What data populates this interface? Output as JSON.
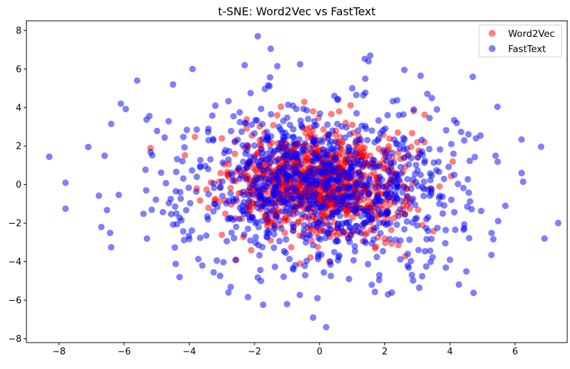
{
  "chart_data": {
    "type": "scatter",
    "title": "t-SNE: Word2Vec vs FastText",
    "xlabel": "",
    "ylabel": "",
    "xlim": [
      -9.0,
      7.6
    ],
    "ylim": [
      -8.2,
      8.5
    ],
    "xticks": [
      -8,
      -6,
      -4,
      -2,
      0,
      2,
      4,
      6
    ],
    "yticks": [
      -8,
      -6,
      -4,
      -2,
      0,
      2,
      4,
      6,
      8
    ],
    "grid": false,
    "legend_position": "top-right",
    "series": [
      {
        "name": "Word2Vec",
        "color": "#ff0000",
        "alpha": 0.5,
        "distribution": "gaussian",
        "count": 1000,
        "center": [
          0.0,
          0.0
        ],
        "std": [
          1.3,
          1.3
        ],
        "points": [
          [
            -0.2,
            3.8
          ],
          [
            0.6,
            3.8
          ],
          [
            -2.1,
            -3.4
          ],
          [
            1.7,
            -3.3
          ],
          [
            0.3,
            -4.0
          ],
          [
            -0.6,
            -4.1
          ],
          [
            -0.4,
            2.9
          ],
          [
            1.0,
            3.1
          ],
          [
            2.4,
            2.7
          ],
          [
            3.0,
            2.2
          ],
          [
            -3.0,
            2.4
          ],
          [
            -2.6,
            1.6
          ],
          [
            -1.3,
            3.6
          ],
          [
            2.0,
            -2.8
          ],
          [
            -1.5,
            -2.9
          ]
        ]
      },
      {
        "name": "FastText",
        "color": "#0000ff",
        "alpha": 0.5,
        "distribution": "gaussian",
        "count": 1000,
        "center": [
          0.0,
          0.0
        ],
        "std": [
          2.2,
          2.2
        ],
        "points": [
          [
            -8.3,
            1.45
          ],
          [
            -7.8,
            0.1
          ],
          [
            -7.8,
            -1.25
          ],
          [
            -7.1,
            1.95
          ],
          [
            -6.6,
            1.5
          ],
          [
            -6.4,
            3.15
          ],
          [
            -6.1,
            4.2
          ],
          [
            -6.7,
            -2.2
          ],
          [
            -6.4,
            -3.25
          ],
          [
            -5.6,
            5.4
          ],
          [
            -4.5,
            5.2
          ],
          [
            -3.9,
            6.0
          ],
          [
            -2.3,
            6.2
          ],
          [
            -1.9,
            7.7
          ],
          [
            -1.5,
            7.05
          ],
          [
            -1.3,
            6.15
          ],
          [
            -0.6,
            6.25
          ],
          [
            1.55,
            6.7
          ],
          [
            1.5,
            6.4
          ],
          [
            2.6,
            5.95
          ],
          [
            3.1,
            5.65
          ],
          [
            4.7,
            5.6
          ],
          [
            1.4,
            5.5
          ],
          [
            1.0,
            5.0
          ],
          [
            6.9,
            -2.8
          ],
          [
            -0.2,
            -6.9
          ],
          [
            0.2,
            -7.4
          ],
          [
            -4.3,
            -4.8
          ],
          [
            -1.0,
            -6.2
          ],
          [
            2.1,
            -5.7
          ],
          [
            -1.8,
            -5.0
          ],
          [
            4.0,
            -3.9
          ],
          [
            -2.8,
            -5.6
          ],
          [
            1.6,
            -5.2
          ],
          [
            -3.6,
            -4.2
          ],
          [
            5.7,
            -1.1
          ],
          [
            6.2,
            0.6
          ],
          [
            5.4,
            1.5
          ],
          [
            4.8,
            2.4
          ],
          [
            -5.3,
            -2.8
          ],
          [
            -4.4,
            -1.5
          ],
          [
            3.6,
            3.9
          ],
          [
            -3.2,
            4.1
          ],
          [
            0.9,
            -4.9
          ]
        ]
      }
    ]
  }
}
